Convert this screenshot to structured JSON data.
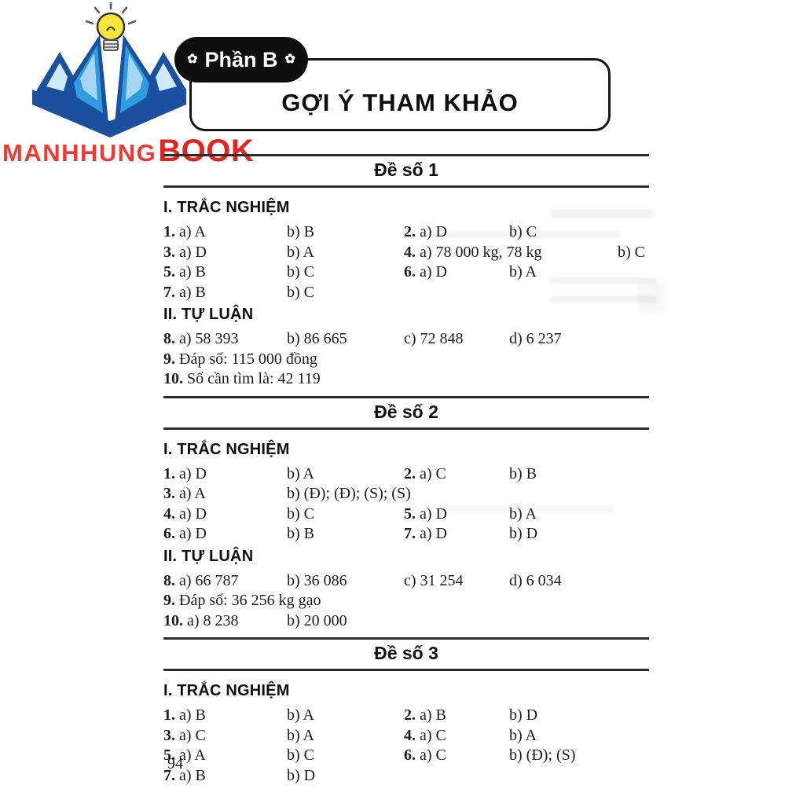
{
  "header": {
    "badge_label": "Phần B",
    "badge_flower": "✿",
    "title": "GỢI Ý THAM KHẢO"
  },
  "logo": {
    "brand_first": "MANHHUNG",
    "brand_second": "BOOK"
  },
  "footer": {
    "page_number": "94"
  },
  "colors": {
    "brand_red": "#ee3a35",
    "brand_red_dark": "#e6231e",
    "badge_bg": "#0e0e0e",
    "rule": "#2b2b2b",
    "logo_dark_blue": "#1b509e",
    "logo_mid_blue": "#2f9ce0",
    "logo_light_blue": "#cde9fa",
    "bulb_yellow": "#f7e63c"
  },
  "sections": [
    {
      "title": "Đề số 1",
      "parts": [
        {
          "heading": "I. TRẮC NGHIỆM",
          "rows": [
            [
              {
                "b": "1.",
                "t": "a) A",
                "col": 0
              },
              {
                "t": "b) B",
                "col": 1
              },
              {
                "b": "2.",
                "t": "a) D",
                "col": 2
              },
              {
                "t": "b) C",
                "col": 3
              }
            ],
            [
              {
                "b": "3.",
                "t": "a) D",
                "col": 0
              },
              {
                "t": "b) A",
                "col": 1
              },
              {
                "b": "4.",
                "t": "a) 78 000 kg, 78 kg",
                "col": 2
              },
              {
                "t": "b) C",
                "col": 4
              }
            ],
            [
              {
                "b": "5.",
                "t": "a) B",
                "col": 0
              },
              {
                "t": "b) C",
                "col": 1
              },
              {
                "b": "6.",
                "t": "a) D",
                "col": 2
              },
              {
                "t": "b) A",
                "col": 3
              }
            ],
            [
              {
                "b": "7.",
                "t": "a) B",
                "col": 0
              },
              {
                "t": "b) C",
                "col": 1
              }
            ]
          ]
        },
        {
          "heading": "II. TỰ LUẬN",
          "rows": [
            [
              {
                "b": "8.",
                "t": "a) 58 393",
                "col": 0
              },
              {
                "t": "b) 86 665",
                "col": 1
              },
              {
                "t": "c) 72 848",
                "col": 2
              },
              {
                "t": "d) 6 237",
                "col": 3
              }
            ],
            [
              {
                "b": "9.",
                "t": "Đáp số: 115 000 đồng",
                "col": 0
              }
            ],
            [
              {
                "b": "10.",
                "t": "Số cần tìm là: 42 119",
                "col": 0
              }
            ]
          ]
        }
      ]
    },
    {
      "title": "Đề số 2",
      "parts": [
        {
          "heading": "I. TRẮC NGHIỆM",
          "rows": [
            [
              {
                "b": "1.",
                "t": "a) D",
                "col": 0
              },
              {
                "t": "b) A",
                "col": 1
              },
              {
                "b": "2.",
                "t": "a) C",
                "col": 2
              },
              {
                "t": "b) B",
                "col": 3
              }
            ],
            [
              {
                "b": "3.",
                "t": "a) A",
                "col": 0
              },
              {
                "t": "b) (Đ); (Đ); (S); (S)",
                "col": 1
              }
            ],
            [
              {
                "b": "4.",
                "t": "a) D",
                "col": 0
              },
              {
                "t": "b) C",
                "col": 1
              },
              {
                "b": "5.",
                "t": "a) D",
                "col": 2
              },
              {
                "t": "b) A",
                "col": 3
              }
            ],
            [
              {
                "b": "6.",
                "t": "a) D",
                "col": 0
              },
              {
                "t": "b) B",
                "col": 1
              },
              {
                "b": "7.",
                "t": "a) D",
                "col": 2
              },
              {
                "t": "b) D",
                "col": 3
              }
            ]
          ]
        },
        {
          "heading": "II. TỰ LUẬN",
          "rows": [
            [
              {
                "b": "8.",
                "t": "a) 66 787",
                "col": 0
              },
              {
                "t": "b) 36 086",
                "col": 1
              },
              {
                "t": "c) 31 254",
                "col": 2
              },
              {
                "t": "d) 6 034",
                "col": 3
              }
            ],
            [
              {
                "b": "9.",
                "t": "Đáp số: 36 256 kg gạo",
                "col": 0
              }
            ],
            [
              {
                "b": "10.",
                "t": "a) 8 238",
                "col": 0
              },
              {
                "t": "b) 20 000",
                "col": 1
              }
            ]
          ]
        }
      ]
    },
    {
      "title": "Đề số 3",
      "parts": [
        {
          "heading": "I. TRẮC NGHIỆM",
          "rows": [
            [
              {
                "b": "1.",
                "t": "a) B",
                "col": 0
              },
              {
                "t": "b) A",
                "col": 1
              },
              {
                "b": "2.",
                "t": "a) B",
                "col": 2
              },
              {
                "t": "b) D",
                "col": 3
              }
            ],
            [
              {
                "b": "3.",
                "t": "a) C",
                "col": 0
              },
              {
                "t": "b) A",
                "col": 1
              },
              {
                "b": "4.",
                "t": "a) C",
                "col": 2
              },
              {
                "t": "b) A",
                "col": 3
              }
            ],
            [
              {
                "b": "5.",
                "t": "a) A",
                "col": 0
              },
              {
                "t": "b) C",
                "col": 1
              },
              {
                "b": "6.",
                "t": "a) C",
                "col": 2
              },
              {
                "t": "b) (Đ); (S)",
                "col": 3
              }
            ],
            [
              {
                "b": "7.",
                "t": "a) B",
                "col": 0
              },
              {
                "t": "b) D",
                "col": 1
              }
            ]
          ]
        }
      ]
    }
  ]
}
